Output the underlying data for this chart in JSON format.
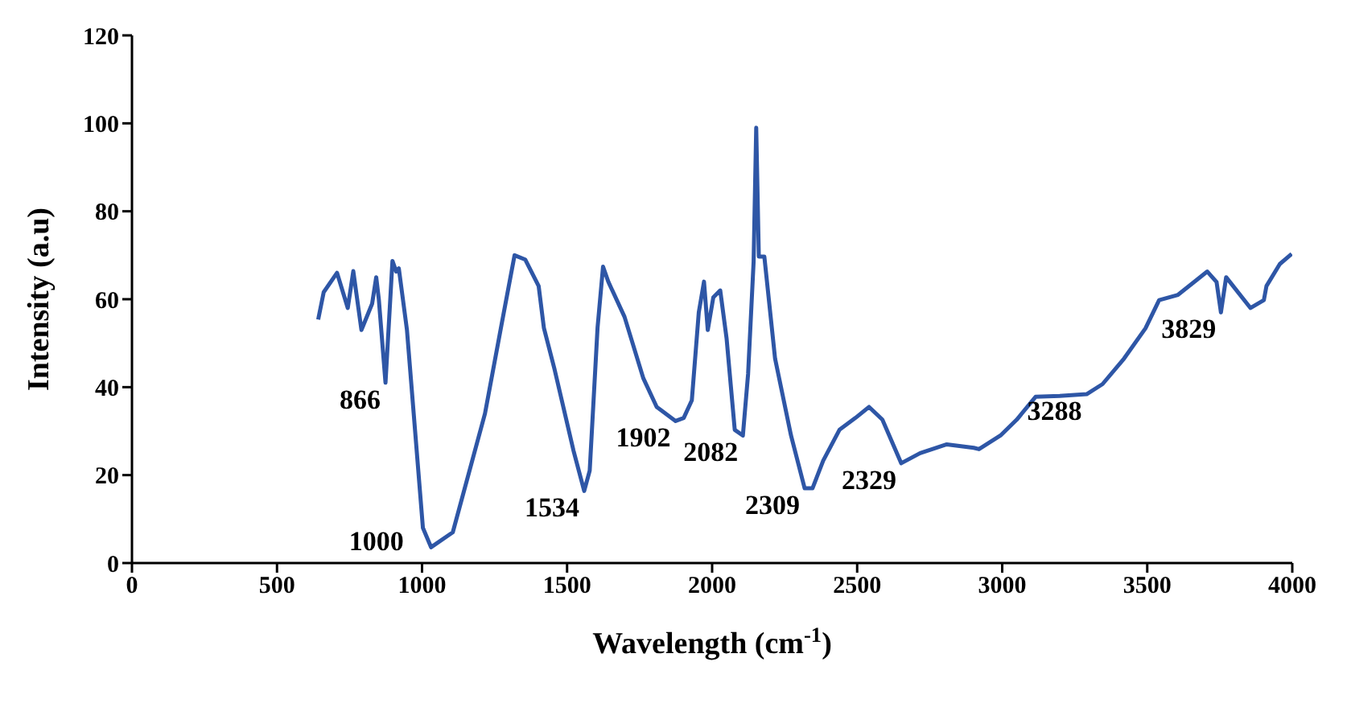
{
  "chart_data": {
    "type": "line",
    "xlabel": "Wavelength (cm$^{-1}$)",
    "ylabel": "Intensity (a.u)",
    "xlim": [
      0,
      4000
    ],
    "xticks": [
      0,
      500,
      1000,
      1500,
      2000,
      2500,
      3000,
      3500,
      4000
    ],
    "ylim": [
      0,
      120
    ],
    "yticks": [
      0,
      20,
      40,
      60,
      80,
      100,
      120
    ],
    "grid": false,
    "legend": false,
    "marker": "none",
    "line_style": "solid",
    "series": [
      {
        "color": "#2e56a6",
        "x": [
          642,
          661,
          707,
          744,
          763,
          791,
          828,
          842,
          851,
          874,
          898,
          911,
          920,
          948,
          1003,
          1031,
          1106,
          1217,
          1272,
          1319,
          1356,
          1402,
          1420,
          1457,
          1522,
          1559,
          1578,
          1605,
          1624,
          1642,
          1698,
          1763,
          1809,
          1874,
          1902,
          1930,
          1954,
          1972,
          1985,
          2004,
          2028,
          2050,
          2078,
          2106,
          2124,
          2143,
          2152,
          2161,
          2180,
          2217,
          2272,
          2319,
          2346,
          2383,
          2439,
          2494,
          2541,
          2587,
          2652,
          2717,
          2809,
          2902,
          2920,
          2994,
          3050,
          3115,
          3198,
          3291,
          3346,
          3420,
          3494,
          3541,
          3606,
          3661,
          3707,
          3739,
          3754,
          3772,
          3856,
          3902,
          3911,
          3957,
          3998
        ],
        "values": [
          55.4,
          61.6,
          66,
          58,
          66.4,
          53,
          59,
          65,
          60,
          41,
          68.7,
          66.3,
          67,
          53,
          8,
          3.6,
          7,
          34,
          53.5,
          70,
          69,
          63,
          53.5,
          44,
          25.6,
          16.4,
          21,
          53.5,
          67.4,
          64,
          56,
          42,
          35.5,
          32.3,
          33,
          37,
          57,
          64,
          53,
          60.4,
          62,
          51,
          30.3,
          29,
          43,
          68.5,
          99,
          69.7,
          69.7,
          46.5,
          29,
          17,
          17,
          23.3,
          30.3,
          33,
          35.5,
          32.6,
          22.7,
          25,
          27,
          26.2,
          25.9,
          29,
          32.6,
          37.8,
          38,
          38.4,
          40.7,
          46.5,
          53.4,
          59.8,
          61,
          63.9,
          66.3,
          63.9,
          57,
          65,
          58,
          59.8,
          63,
          68,
          70.3
        ]
      }
    ],
    "annotations": [
      {
        "text": "866",
        "x": 874,
        "y": 41
      },
      {
        "text": "1000",
        "x": 1031,
        "y": 3.6
      },
      {
        "text": "1534",
        "x": 1559,
        "y": 16.4
      },
      {
        "text": "1902",
        "x": 1874,
        "y": 32.3
      },
      {
        "text": "2082",
        "x": 2106,
        "y": 29
      },
      {
        "text": "2309",
        "x": 2319,
        "y": 17
      },
      {
        "text": "2329",
        "x": 2652,
        "y": 22.7
      },
      {
        "text": "3288",
        "x": 3291,
        "y": 38.4
      },
      {
        "text": "3829",
        "x": 3754,
        "y": 57
      }
    ]
  }
}
